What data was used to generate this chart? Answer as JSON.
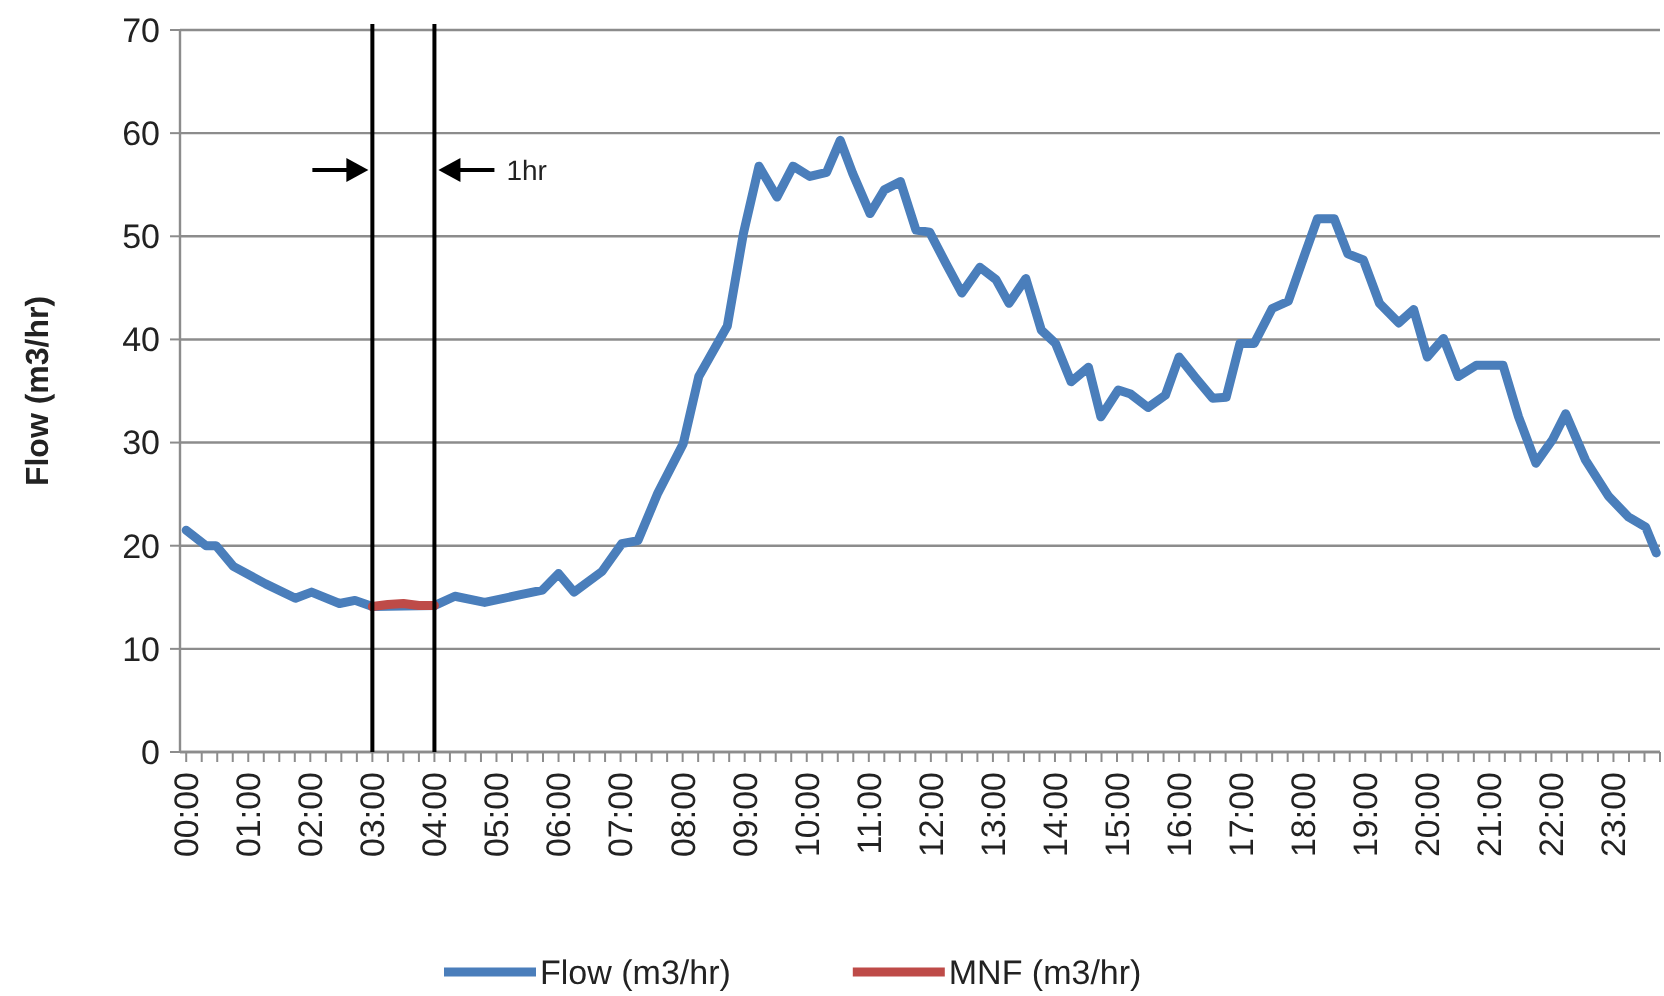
{
  "chart_data": {
    "type": "line",
    "ylabel": "Flow (m3/hr)",
    "xlim": [
      -0.1,
      23.75
    ],
    "ylim": [
      0,
      70
    ],
    "yticks": [
      0,
      10,
      20,
      30,
      40,
      50,
      60,
      70
    ],
    "xticks": [
      {
        "value": 0,
        "label": "00:00"
      },
      {
        "value": 0.25,
        "label": null
      },
      {
        "value": 0.5,
        "label": null
      },
      {
        "value": 0.75,
        "label": null
      },
      {
        "value": 1,
        "label": "01:00"
      },
      {
        "value": 1.25,
        "label": null
      },
      {
        "value": 1.5,
        "label": null
      },
      {
        "value": 1.75,
        "label": null
      },
      {
        "value": 2,
        "label": "02:00"
      },
      {
        "value": 2.25,
        "label": null
      },
      {
        "value": 2.5,
        "label": null
      },
      {
        "value": 2.75,
        "label": null
      },
      {
        "value": 3,
        "label": "03:00"
      },
      {
        "value": 3.25,
        "label": null
      },
      {
        "value": 3.5,
        "label": null
      },
      {
        "value": 3.75,
        "label": null
      },
      {
        "value": 4,
        "label": "04:00"
      },
      {
        "value": 4.25,
        "label": null
      },
      {
        "value": 4.5,
        "label": null
      },
      {
        "value": 4.75,
        "label": null
      },
      {
        "value": 5,
        "label": "05:00"
      },
      {
        "value": 5.25,
        "label": null
      },
      {
        "value": 5.5,
        "label": null
      },
      {
        "value": 5.75,
        "label": null
      },
      {
        "value": 6,
        "label": "06:00"
      },
      {
        "value": 6.25,
        "label": null
      },
      {
        "value": 6.5,
        "label": null
      },
      {
        "value": 6.75,
        "label": null
      },
      {
        "value": 7,
        "label": "07:00"
      },
      {
        "value": 7.25,
        "label": null
      },
      {
        "value": 7.5,
        "label": null
      },
      {
        "value": 7.75,
        "label": null
      },
      {
        "value": 8,
        "label": "08:00"
      },
      {
        "value": 8.25,
        "label": null
      },
      {
        "value": 8.5,
        "label": null
      },
      {
        "value": 8.75,
        "label": null
      },
      {
        "value": 9,
        "label": "09:00"
      },
      {
        "value": 9.25,
        "label": null
      },
      {
        "value": 9.5,
        "label": null
      },
      {
        "value": 9.75,
        "label": null
      },
      {
        "value": 10,
        "label": "10:00"
      },
      {
        "value": 10.25,
        "label": null
      },
      {
        "value": 10.5,
        "label": null
      },
      {
        "value": 10.75,
        "label": null
      },
      {
        "value": 11,
        "label": "11:00"
      },
      {
        "value": 11.25,
        "label": null
      },
      {
        "value": 11.5,
        "label": null
      },
      {
        "value": 11.75,
        "label": null
      },
      {
        "value": 12,
        "label": "12:00"
      },
      {
        "value": 12.25,
        "label": null
      },
      {
        "value": 12.5,
        "label": null
      },
      {
        "value": 12.75,
        "label": null
      },
      {
        "value": 13,
        "label": "13:00"
      },
      {
        "value": 13.25,
        "label": null
      },
      {
        "value": 13.5,
        "label": null
      },
      {
        "value": 13.75,
        "label": null
      },
      {
        "value": 14,
        "label": "14:00"
      },
      {
        "value": 14.25,
        "label": null
      },
      {
        "value": 14.5,
        "label": null
      },
      {
        "value": 14.75,
        "label": null
      },
      {
        "value": 15,
        "label": "15:00"
      },
      {
        "value": 15.25,
        "label": null
      },
      {
        "value": 15.5,
        "label": null
      },
      {
        "value": 15.75,
        "label": null
      },
      {
        "value": 16,
        "label": "16:00"
      },
      {
        "value": 16.25,
        "label": null
      },
      {
        "value": 16.5,
        "label": null
      },
      {
        "value": 16.75,
        "label": null
      },
      {
        "value": 17,
        "label": "17:00"
      },
      {
        "value": 17.25,
        "label": null
      },
      {
        "value": 17.5,
        "label": null
      },
      {
        "value": 17.75,
        "label": null
      },
      {
        "value": 18,
        "label": "18:00"
      },
      {
        "value": 18.25,
        "label": null
      },
      {
        "value": 18.5,
        "label": null
      },
      {
        "value": 18.75,
        "label": null
      },
      {
        "value": 19,
        "label": "19:00"
      },
      {
        "value": 19.25,
        "label": null
      },
      {
        "value": 19.5,
        "label": null
      },
      {
        "value": 19.75,
        "label": null
      },
      {
        "value": 20,
        "label": "20:00"
      },
      {
        "value": 20.25,
        "label": null
      },
      {
        "value": 20.5,
        "label": null
      },
      {
        "value": 20.75,
        "label": null
      },
      {
        "value": 21,
        "label": "21:00"
      },
      {
        "value": 21.25,
        "label": null
      },
      {
        "value": 21.5,
        "label": null
      },
      {
        "value": 21.75,
        "label": null
      },
      {
        "value": 22,
        "label": "22:00"
      },
      {
        "value": 22.25,
        "label": null
      },
      {
        "value": 22.5,
        "label": null
      },
      {
        "value": 22.75,
        "label": null
      },
      {
        "value": 23,
        "label": "23:00"
      },
      {
        "value": 23.25,
        "label": null
      },
      {
        "value": 23.5,
        "label": null
      },
      {
        "value": 23.75,
        "label": null
      }
    ],
    "grid": "y",
    "legend": "bottom",
    "marker": "none",
    "line_style": "solid",
    "series": [
      {
        "name": "Flow (m3/hr)",
        "color": "#4a7ebb",
        "x": [
          0,
          0.32,
          0.48,
          0.76,
          1.28,
          1.76,
          2.02,
          2.47,
          2.72,
          3,
          4,
          4.33,
          4.81,
          5.35,
          5.74,
          6,
          6.25,
          6.7,
          7.02,
          7.28,
          7.6,
          8.01,
          8.26,
          8.72,
          8.98,
          9.23,
          9.52,
          9.78,
          10.05,
          10.32,
          10.54,
          10.74,
          11.02,
          11.25,
          11.51,
          11.76,
          11.98,
          12.24,
          12.5,
          12.79,
          13.05,
          13.26,
          13.53,
          13.78,
          14.01,
          14.26,
          14.54,
          14.74,
          15.02,
          15.22,
          15.5,
          15.78,
          16,
          16.25,
          16.54,
          16.76,
          16.98,
          17.21,
          17.5,
          17.76,
          18.01,
          18.23,
          18.5,
          18.72,
          18.97,
          19.23,
          19.54,
          19.78,
          20,
          20.26,
          20.5,
          20.79,
          21.22,
          21.47,
          21.75,
          22.02,
          22.23,
          22.55,
          22.92,
          23.24,
          23.52,
          23.69
        ],
        "values": [
          21.5,
          20,
          20,
          18,
          16.3,
          14.9,
          15.5,
          14.4,
          14.7,
          14.1,
          14.2,
          15.1,
          14.5,
          15.2,
          15.7,
          17.3,
          15.5,
          17.5,
          20.2,
          20.5,
          25.1,
          29.9,
          36.4,
          41.3,
          50.3,
          56.8,
          53.8,
          56.8,
          55.8,
          56.2,
          59.3,
          56.1,
          52.2,
          54.5,
          55.3,
          50.6,
          50.4,
          47.4,
          44.5,
          47,
          45.8,
          43.5,
          45.9,
          40.9,
          39.6,
          35.9,
          37.3,
          32.5,
          35.1,
          34.7,
          33.4,
          34.6,
          38.3,
          36.4,
          34.3,
          34.4,
          39.6,
          39.6,
          43,
          43.7,
          48,
          51.7,
          51.7,
          48.3,
          47.7,
          43.5,
          41.6,
          42.9,
          38.3,
          40.1,
          36.4,
          37.5,
          37.5,
          32.5,
          28,
          30.3,
          32.8,
          28.3,
          24.8,
          22.8,
          21.8,
          19.3
        ]
      },
      {
        "name": "MNF (m3/hr)",
        "color": "#be4b48",
        "x": [
          3,
          3.25,
          3.5,
          3.75,
          4
        ],
        "values": [
          14.1,
          14.3,
          14.4,
          14.2,
          14.2
        ]
      }
    ],
    "ref_lines": [
      {
        "axis": "x",
        "value": 3,
        "color": "#000000"
      },
      {
        "axis": "x",
        "value": 4,
        "color": "#000000"
      }
    ],
    "annotations": [
      "1hr"
    ]
  }
}
